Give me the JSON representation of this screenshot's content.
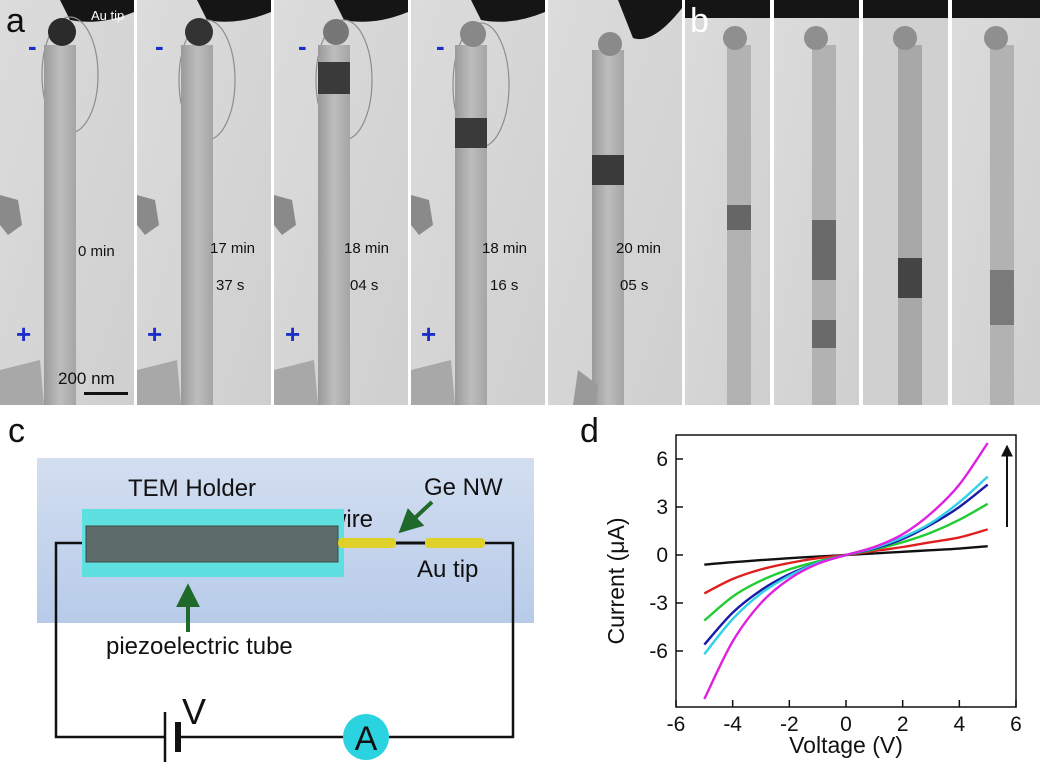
{
  "panels": {
    "a": {
      "letter": "a",
      "au_tip_label": "Au tip",
      "minus_sign": "-",
      "plus_sign": "+",
      "scale_bar": "200 nm",
      "frames": [
        {
          "line1": "0 min",
          "line2": ""
        },
        {
          "line1": "17 min",
          "line2": "37 s"
        },
        {
          "line1": "18 min",
          "line2": "04 s"
        },
        {
          "line1": "18 min",
          "line2": "16 s"
        },
        {
          "line1": "20 min",
          "line2": "05 s"
        }
      ]
    },
    "b": {
      "letter": "b"
    },
    "c": {
      "letter": "c",
      "tem_holder": "TEM Holder",
      "ge_nw": "Ge NW",
      "au_wire": "Au wire",
      "au_tip": "Au tip",
      "piezo": "piezoelectric tube",
      "voltage_symbol": "V",
      "ammeter_symbol": "A"
    },
    "d": {
      "letter": "d"
    }
  },
  "colors": {
    "holder_bg": "#c5d6ee",
    "tube_dark": "#5e6b6b",
    "tube_cyan": "#5fe0e0",
    "gold": "#e0d02a",
    "ammeter": "#2bd3e0",
    "arrow_green": "#1f6a2a"
  },
  "chart_data": {
    "type": "line",
    "title": "",
    "xlabel": "Voltage (V)",
    "ylabel": "Current (μA)",
    "xlim": [
      -6,
      6
    ],
    "ylim": [
      -9.5,
      7.5
    ],
    "xticks": [
      -6,
      -4,
      -2,
      0,
      2,
      4,
      6
    ],
    "yticks": [
      -6,
      -3,
      0,
      3,
      6
    ],
    "grid": false,
    "legend": "none",
    "trend_arrow": "up",
    "series": [
      {
        "color": "#111111",
        "x": [
          -5,
          -4,
          -3,
          -2,
          -1,
          0,
          1,
          2,
          3,
          4,
          5
        ],
        "values": [
          -0.6,
          -0.45,
          -0.32,
          -0.2,
          -0.1,
          0,
          0.1,
          0.2,
          0.3,
          0.4,
          0.55
        ]
      },
      {
        "color": "#e02020",
        "x": [
          -5,
          -4,
          -3,
          -2,
          -1,
          0,
          1,
          2,
          3,
          4,
          5
        ],
        "values": [
          -2.4,
          -1.5,
          -0.9,
          -0.5,
          -0.2,
          0,
          0.25,
          0.5,
          0.8,
          1.1,
          1.6
        ]
      },
      {
        "color": "#22cc33",
        "x": [
          -5,
          -4,
          -3,
          -2,
          -1,
          0,
          1,
          2,
          3,
          4,
          5
        ],
        "values": [
          -4.1,
          -2.6,
          -1.6,
          -0.9,
          -0.4,
          0,
          0.35,
          0.8,
          1.4,
          2.2,
          3.2
        ]
      },
      {
        "color": "#1a1aa8",
        "x": [
          -5,
          -4,
          -3,
          -2,
          -1,
          0,
          1,
          2,
          3,
          4,
          5
        ],
        "values": [
          -5.6,
          -3.6,
          -2.2,
          -1.2,
          -0.5,
          0,
          0.4,
          1.0,
          1.9,
          3.0,
          4.4
        ]
      },
      {
        "color": "#2fd0e8",
        "x": [
          -5,
          -4,
          -3,
          -2,
          -1,
          0,
          1,
          2,
          3,
          4,
          5
        ],
        "values": [
          -6.2,
          -4.0,
          -2.4,
          -1.3,
          -0.5,
          0,
          0.45,
          1.1,
          2.0,
          3.3,
          4.9
        ]
      },
      {
        "color": "#e020e0",
        "x": [
          -5,
          -4,
          -3,
          -2,
          -1,
          0,
          1,
          2,
          3,
          4,
          5
        ],
        "values": [
          -9.0,
          -5.4,
          -3.0,
          -1.5,
          -0.55,
          0,
          0.5,
          1.3,
          2.6,
          4.4,
          7.0
        ]
      }
    ]
  }
}
